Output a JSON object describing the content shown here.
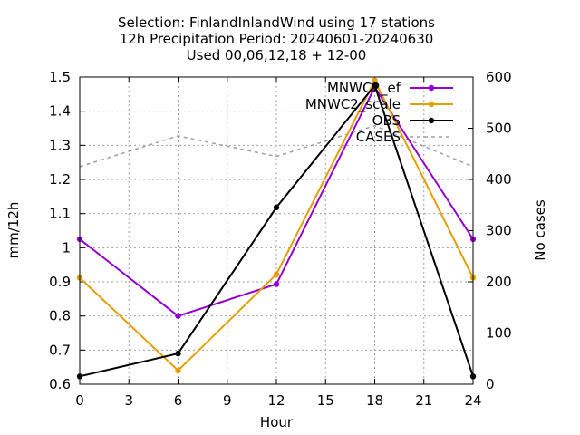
{
  "chart_data": {
    "type": "line",
    "title": [
      "Selection: FinlandInlandWind using    17 stations",
      "12h Precipitation    Period: 20240601-20240630",
      "Used 00,06,12,18 + 12-00"
    ],
    "xlabel": "Hour",
    "ylabel": "mm/12h",
    "y2label": "No cases",
    "xlim": [
      0,
      24
    ],
    "ylim": [
      0.6,
      1.5
    ],
    "y2lim": [
      0,
      600
    ],
    "xticks": [
      "0",
      "3",
      "6",
      "9",
      "12",
      "15",
      "18",
      "21",
      "24"
    ],
    "yticks": [
      "0.6",
      "0.7",
      "0.8",
      "0.9",
      "1",
      "1.1",
      "1.2",
      "1.3",
      "1.4",
      "1.5"
    ],
    "y2ticks": [
      "0",
      "100",
      "200",
      "300",
      "400",
      "500",
      "600"
    ],
    "grid": true,
    "legend_position": "top-right",
    "x": [
      0,
      6,
      12,
      18,
      24
    ],
    "series": [
      {
        "name": "MNWC2_ef",
        "color": "#9400d3",
        "axis": "y",
        "values": [
          1.025,
          0.8,
          0.893,
          1.47,
          1.025
        ]
      },
      {
        "name": "MNWC2_scale",
        "color": "#e69f00",
        "axis": "y",
        "values": [
          0.912,
          0.64,
          0.922,
          1.49,
          0.912
        ]
      },
      {
        "name": "OBS",
        "color": "#000000",
        "axis": "y",
        "values": [
          0.623,
          0.69,
          1.118,
          1.475,
          0.623
        ]
      },
      {
        "name": "CASES",
        "color": "#a0a0a0",
        "axis": "y2",
        "dashed": true,
        "values": [
          425,
          485,
          445,
          505,
          425
        ]
      }
    ]
  }
}
